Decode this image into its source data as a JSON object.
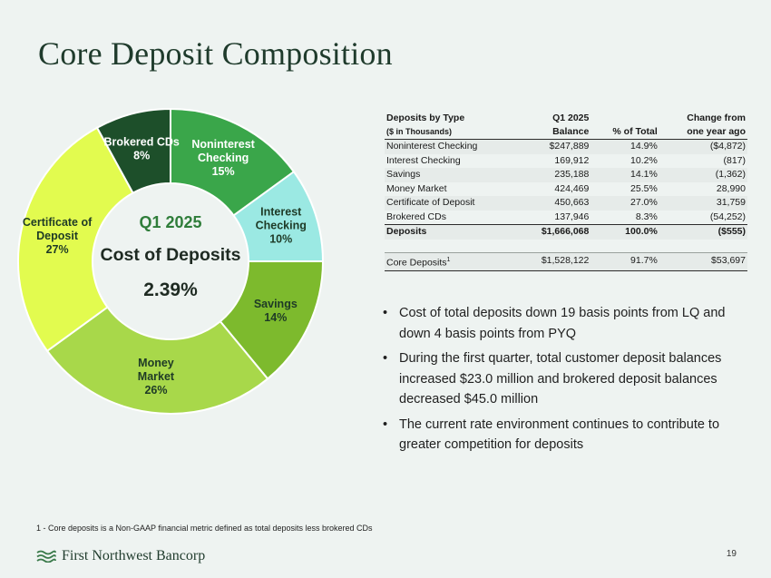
{
  "title": "Core Deposit Composition",
  "chart_data": {
    "type": "pie",
    "center": {
      "line1": "Q1 2025",
      "line2": "Cost of Deposits",
      "line3": "2.39%"
    },
    "slices": [
      {
        "label": [
          "Noninterest",
          "Checking"
        ],
        "pct_label": "15%",
        "value": 15,
        "color": "#3aa64a"
      },
      {
        "label": [
          "Interest",
          "Checking"
        ],
        "pct_label": "10%",
        "value": 10,
        "color": "#9be9e3"
      },
      {
        "label": [
          "Savings"
        ],
        "pct_label": "14%",
        "value": 14,
        "color": "#7dba2d"
      },
      {
        "label": [
          "Money",
          "Market"
        ],
        "pct_label": "26%",
        "value": 26,
        "color": "#a8d84a"
      },
      {
        "label": [
          "Certificate of",
          "Deposit"
        ],
        "pct_label": "27%",
        "value": 27,
        "color": "#e2fb4f"
      },
      {
        "label": [
          "Brokered CDs"
        ],
        "pct_label": "8%",
        "value": 8,
        "color": "#1d4f2a"
      }
    ]
  },
  "table": {
    "headers": {
      "col1_line1": "Deposits by Type",
      "col1_line2": "($ in Thousands)",
      "col2_line1": "Q1 2025",
      "col2_line2": "Balance",
      "col3_line2": "% of Total",
      "col4_line1": "Change from",
      "col4_line2": "one year ago"
    },
    "rows": [
      {
        "type": "Noninterest Checking",
        "balance": "$247,889",
        "pct": "14.9%",
        "change": "($4,872)"
      },
      {
        "type": "Interest Checking",
        "balance": "169,912",
        "pct": "10.2%",
        "change": "(817)"
      },
      {
        "type": "Savings",
        "balance": "235,188",
        "pct": "14.1%",
        "change": "(1,362)"
      },
      {
        "type": "Money Market",
        "balance": "424,469",
        "pct": "25.5%",
        "change": "28,990"
      },
      {
        "type": "Certificate of Deposit",
        "balance": "450,663",
        "pct": "27.0%",
        "change": "31,759"
      },
      {
        "type": "Brokered CDs",
        "balance": "137,946",
        "pct": "8.3%",
        "change": "(54,252)"
      }
    ],
    "total": {
      "type": "Deposits",
      "balance": "$1,666,068",
      "pct": "100.0%",
      "change": "($555)"
    },
    "core": {
      "type": "Core Deposits",
      "sup": "1",
      "balance": "$1,528,122",
      "pct": "91.7%",
      "change": "$53,697"
    }
  },
  "bullets": [
    "Cost of total deposits down 19 basis points from LQ and down 4 basis points from PYQ",
    "During the first quarter, total customer deposit balances increased $23.0 million and brokered deposit balances decreased $45.0 million",
    "The current rate environment continues to contribute to greater competition for deposits"
  ],
  "footnote": "1 - Core deposits is a Non-GAAP financial metric defined as total deposits less brokered CDs",
  "brand": "First Northwest Bancorp",
  "page_number": "19",
  "colors": {
    "title": "#1f3b2c",
    "center_text": "#2f7d3a"
  }
}
